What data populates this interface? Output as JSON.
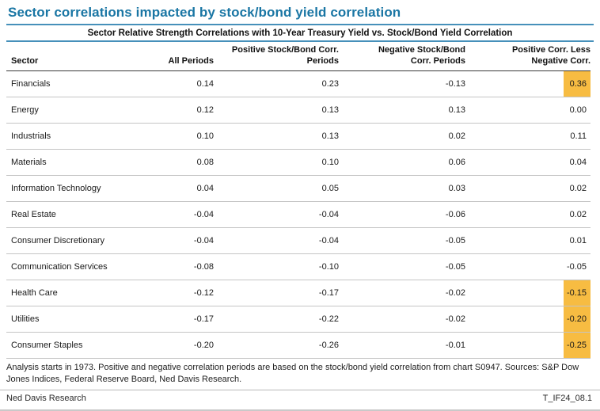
{
  "page": {
    "title": "Sector correlations impacted by stock/bond yield correlation",
    "footnote": "Analysis starts in 1973. Positive and negative correlation periods are based on the stock/bond yield correlation from chart S0947. Sources: S&P Dow Jones Indices, Federal Reserve Board, Ned Davis Research.",
    "footer_left": "Ned Davis Research",
    "footer_right": "T_IF24_08.1"
  },
  "table": {
    "subtitle": "Sector Relative Strength Correlations with 10-Year Treasury Yield vs. Stock/Bond Yield Correlation",
    "headers": {
      "sector": "Sector",
      "all_periods": "All Periods",
      "pos_line1": "Positive Stock/Bond Corr.",
      "pos_line2": "Periods",
      "neg_line1": "Negative Stock/Bond",
      "neg_line2": "Corr. Periods",
      "diff_line1": "Positive Corr. Less",
      "diff_line2": "Negative Corr."
    },
    "rows": [
      {
        "sector": "Financials",
        "all_periods": "0.14",
        "positive_periods": "0.23",
        "negative_periods": "-0.13",
        "difference": "0.36",
        "highlighted": true
      },
      {
        "sector": "Energy",
        "all_periods": "0.12",
        "positive_periods": "0.13",
        "negative_periods": "0.13",
        "difference": "0.00",
        "highlighted": false
      },
      {
        "sector": "Industrials",
        "all_periods": "0.10",
        "positive_periods": "0.13",
        "negative_periods": "0.02",
        "difference": "0.11",
        "highlighted": false
      },
      {
        "sector": "Materials",
        "all_periods": "0.08",
        "positive_periods": "0.10",
        "negative_periods": "0.06",
        "difference": "0.04",
        "highlighted": false
      },
      {
        "sector": "Information Technology",
        "all_periods": "0.04",
        "positive_periods": "0.05",
        "negative_periods": "0.03",
        "difference": "0.02",
        "highlighted": false
      },
      {
        "sector": "Real Estate",
        "all_periods": "-0.04",
        "positive_periods": "-0.04",
        "negative_periods": "-0.06",
        "difference": "0.02",
        "highlighted": false
      },
      {
        "sector": "Consumer Discretionary",
        "all_periods": "-0.04",
        "positive_periods": "-0.04",
        "negative_periods": "-0.05",
        "difference": "0.01",
        "highlighted": false
      },
      {
        "sector": "Communication Services",
        "all_periods": "-0.08",
        "positive_periods": "-0.10",
        "negative_periods": "-0.05",
        "difference": "-0.05",
        "highlighted": false
      },
      {
        "sector": "Health Care",
        "all_periods": "-0.12",
        "positive_periods": "-0.17",
        "negative_periods": "-0.02",
        "difference": "-0.15",
        "highlighted": true
      },
      {
        "sector": "Utilities",
        "all_periods": "-0.17",
        "positive_periods": "-0.22",
        "negative_periods": "-0.02",
        "difference": "-0.20",
        "highlighted": true
      },
      {
        "sector": "Consumer Staples",
        "all_periods": "-0.20",
        "positive_periods": "-0.26",
        "negative_periods": "-0.01",
        "difference": "-0.25",
        "highlighted": true
      }
    ]
  },
  "chart_data": {
    "type": "table",
    "title": "Sector correlations impacted by stock/bond yield correlation",
    "subtitle": "Sector Relative Strength Correlations with 10-Year Treasury Yield vs. Stock/Bond Yield Correlation",
    "columns": [
      "Sector",
      "All Periods",
      "Positive Stock/Bond Corr. Periods",
      "Negative Stock/Bond Corr. Periods",
      "Positive Corr. Less Negative Corr."
    ],
    "rows": [
      [
        "Financials",
        0.14,
        0.23,
        -0.13,
        0.36
      ],
      [
        "Energy",
        0.12,
        0.13,
        0.13,
        0.0
      ],
      [
        "Industrials",
        0.1,
        0.13,
        0.02,
        0.11
      ],
      [
        "Materials",
        0.08,
        0.1,
        0.06,
        0.04
      ],
      [
        "Information Technology",
        0.04,
        0.05,
        0.03,
        0.02
      ],
      [
        "Real Estate",
        -0.04,
        -0.04,
        -0.06,
        0.02
      ],
      [
        "Consumer Discretionary",
        -0.04,
        -0.04,
        -0.05,
        0.01
      ],
      [
        "Communication Services",
        -0.08,
        -0.1,
        -0.05,
        -0.05
      ],
      [
        "Health Care",
        -0.12,
        -0.17,
        -0.02,
        -0.15
      ],
      [
        "Utilities",
        -0.17,
        -0.22,
        -0.02,
        -0.2
      ],
      [
        "Consumer Staples",
        -0.2,
        -0.26,
        -0.01,
        -0.25
      ]
    ],
    "highlighted_last_column_rows": [
      "Financials",
      "Health Care",
      "Utilities",
      "Consumer Staples"
    ],
    "highlight_color": "#f7bc42",
    "notes": "Analysis starts in 1973. Positive and negative correlation periods are based on the stock/bond yield correlation from chart S0947. Sources: S&P Dow Jones Indices, Federal Reserve Board, Ned Davis Research."
  },
  "colors": {
    "title_blue": "#1a76a4",
    "rule_blue": "#4690ba",
    "highlight_amber": "#f7bc42",
    "row_separator": "#c4c4c4",
    "header_rule": "#3a3a3a"
  }
}
